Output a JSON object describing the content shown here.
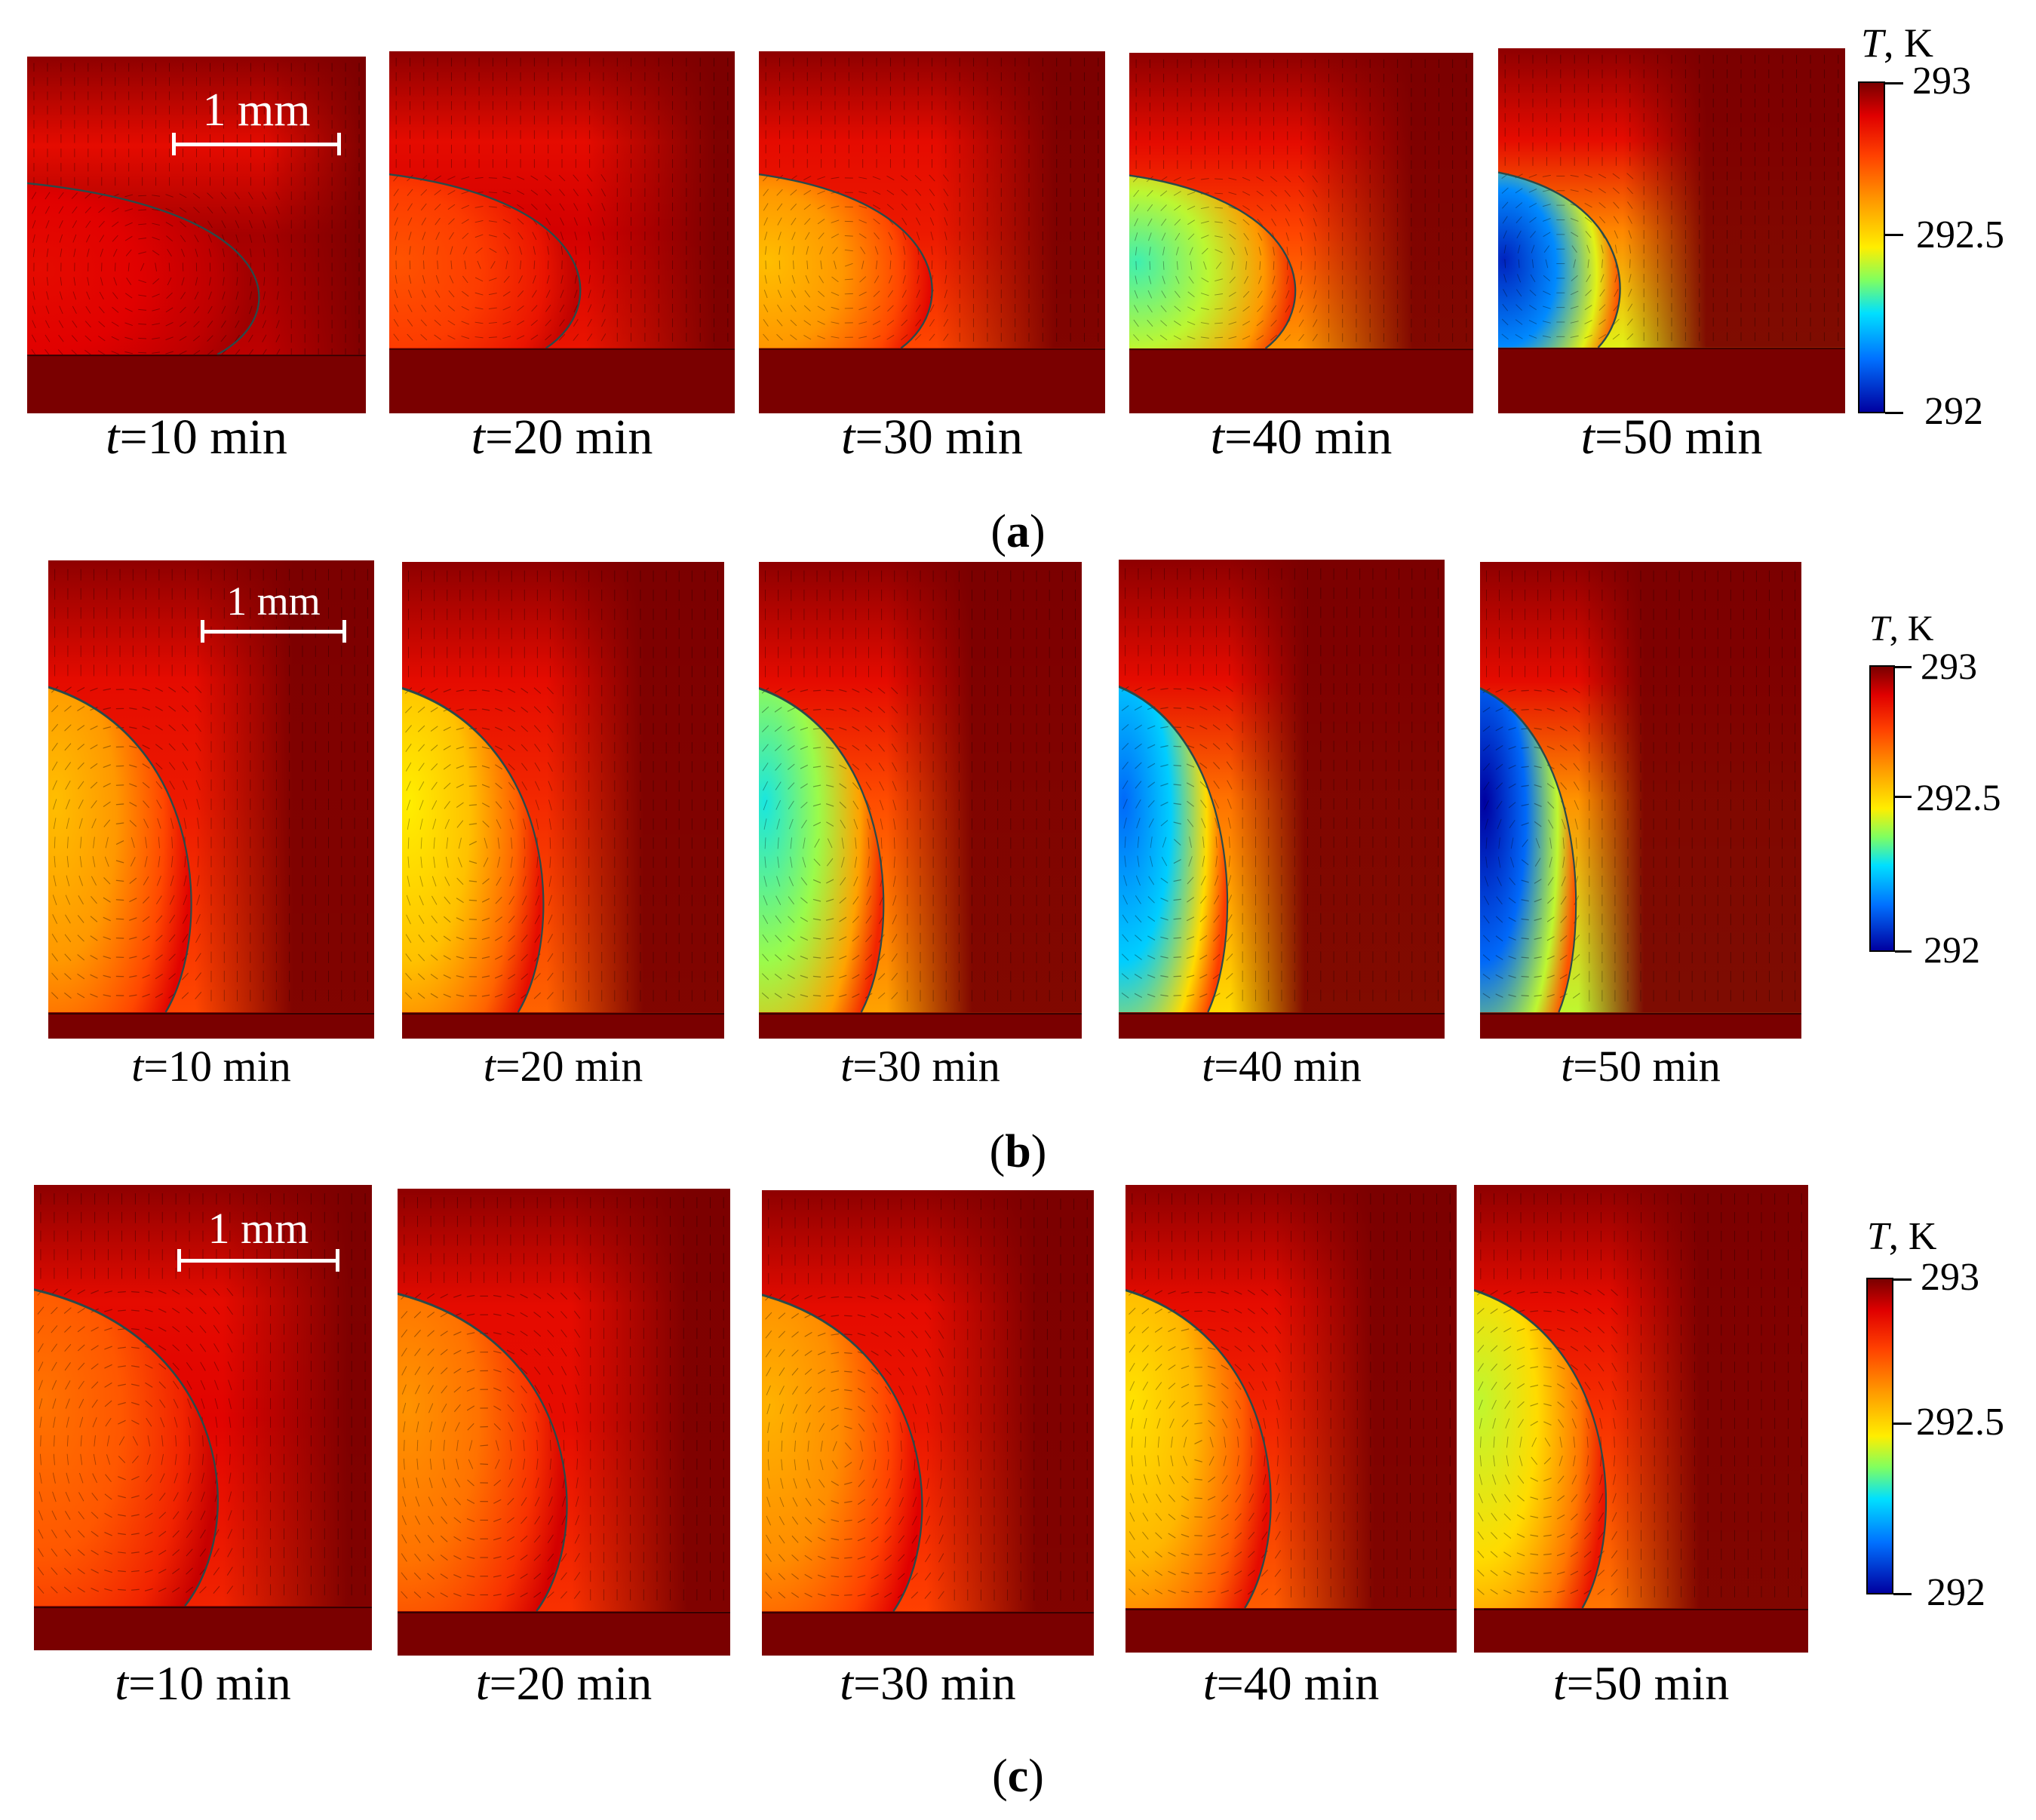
{
  "figure": {
    "rows": [
      {
        "id": "a",
        "sub_label": "a",
        "colorbar": {
          "title_var": "T",
          "title_unit": ", K",
          "ticks": [
            "293",
            "292.5",
            "292"
          ]
        },
        "scale_bar": "1 mm",
        "panels": [
          {
            "time_var": "t",
            "time_text": "=10 min",
            "cold_level": 0.12
          },
          {
            "time_var": "t",
            "time_text": "=20 min",
            "cold_level": 0.25
          },
          {
            "time_var": "t",
            "time_text": "=30 min",
            "cold_level": 0.42
          },
          {
            "time_var": "t",
            "time_text": "=40 min",
            "cold_level": 0.65
          },
          {
            "time_var": "t",
            "time_text": "=50 min",
            "cold_level": 0.95
          }
        ]
      },
      {
        "id": "b",
        "sub_label": "b",
        "colorbar": {
          "title_var": "T",
          "title_unit": ", K",
          "ticks": [
            "293",
            "292.5",
            "292"
          ]
        },
        "scale_bar": "1 mm",
        "panels": [
          {
            "time_var": "t",
            "time_text": "=10 min",
            "cold_level": 0.42
          },
          {
            "time_var": "t",
            "time_text": "=20 min",
            "cold_level": 0.5
          },
          {
            "time_var": "t",
            "time_text": "=30 min",
            "cold_level": 0.68
          },
          {
            "time_var": "t",
            "time_text": "=40 min",
            "cold_level": 0.85
          },
          {
            "time_var": "t",
            "time_text": "=50 min",
            "cold_level": 1.0
          }
        ]
      },
      {
        "id": "c",
        "sub_label": "c",
        "colorbar": {
          "title_var": "T",
          "title_unit": ", K",
          "ticks": [
            "293",
            "292.5",
            "292"
          ]
        },
        "scale_bar": "1 mm",
        "panels": [
          {
            "time_var": "t",
            "time_text": "=10 min",
            "cold_level": 0.3
          },
          {
            "time_var": "t",
            "time_text": "=20 min",
            "cold_level": 0.35
          },
          {
            "time_var": "t",
            "time_text": "=30 min",
            "cold_level": 0.4
          },
          {
            "time_var": "t",
            "time_text": "=40 min",
            "cold_level": 0.48
          },
          {
            "time_var": "t",
            "time_text": "=50 min",
            "cold_level": 0.55
          }
        ]
      }
    ]
  }
}
